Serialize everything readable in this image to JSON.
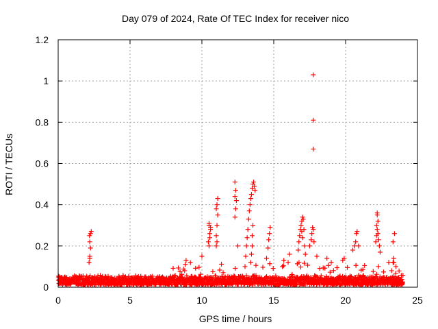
{
  "chart_data": {
    "type": "scatter",
    "title": "Day 079 of 2024, Rate Of TEC Index for receiver nico",
    "xlabel": "GPS time / hours",
    "ylabel": "ROTI / TECUs",
    "xlim": [
      0,
      25
    ],
    "ylim": [
      0,
      1.2
    ],
    "xticks": [
      0,
      5,
      10,
      15,
      20,
      25
    ],
    "xtick_labels": [
      "0",
      "5",
      "10",
      "15",
      "20",
      "25"
    ],
    "yticks": [
      0,
      0.2,
      0.4,
      0.6,
      0.8,
      1.0,
      1.2
    ],
    "ytick_labels": [
      "0",
      "0.2",
      "0.4",
      "0.6",
      "0.8",
      "1",
      "1.2"
    ],
    "grid": true,
    "marker": "plus",
    "series": [
      {
        "name": "ROTI",
        "color": "#ff0000",
        "baseline": {
          "x_range": [
            0,
            24
          ],
          "typical_max": 0.06,
          "description_range": [
            0.01,
            0.06
          ]
        },
        "x": [
          2.15,
          2.2,
          2.25,
          2.2,
          2.18,
          2.25,
          2.3,
          2.2,
          8.8,
          8.85,
          8.9,
          10.0,
          10.5,
          10.55,
          10.6,
          10.5,
          10.45,
          10.55,
          10.6,
          10.5,
          11.0,
          11.05,
          11.1,
          11.0,
          11.05,
          11.1,
          11.0,
          11.05,
          12.3,
          12.35,
          12.3,
          12.35,
          12.3,
          12.4,
          12.5,
          13.0,
          13.05,
          13.1,
          13.15,
          13.2,
          13.25,
          13.3,
          13.35,
          13.4,
          13.45,
          13.5,
          13.55,
          13.6,
          13.65,
          13.7,
          13.4,
          13.45,
          13.5,
          13.5,
          13.55,
          14.5,
          14.6,
          14.65,
          14.7,
          14.75,
          15.6,
          15.7,
          16.0,
          16.1,
          16.7,
          16.75,
          16.8,
          16.85,
          16.9,
          16.95,
          17.0,
          17.05,
          17.1,
          17.15,
          17.2,
          17.0,
          16.95,
          17.5,
          17.6,
          17.65,
          17.7,
          17.75,
          17.8,
          17.75,
          17.75,
          17.75,
          18.0,
          18.7,
          19.0,
          19.8,
          19.9,
          20.5,
          20.6,
          20.7,
          20.75,
          20.8,
          20.9,
          22.1,
          22.15,
          22.2,
          22.25,
          22.2,
          22.15,
          22.2,
          22.25,
          22.3,
          22.35,
          22.4,
          23.0,
          23.2,
          23.3,
          23.35,
          23.4,
          23.5,
          23.3
        ],
        "y": [
          0.12,
          0.15,
          0.19,
          0.22,
          0.25,
          0.26,
          0.27,
          0.14,
          0.08,
          0.11,
          0.13,
          0.15,
          0.2,
          0.26,
          0.28,
          0.3,
          0.22,
          0.24,
          0.29,
          0.31,
          0.25,
          0.3,
          0.35,
          0.38,
          0.4,
          0.43,
          0.2,
          0.22,
          0.34,
          0.38,
          0.44,
          0.47,
          0.51,
          0.42,
          0.2,
          0.1,
          0.15,
          0.2,
          0.24,
          0.28,
          0.33,
          0.37,
          0.4,
          0.43,
          0.45,
          0.48,
          0.5,
          0.51,
          0.49,
          0.47,
          0.12,
          0.16,
          0.2,
          0.25,
          0.3,
          0.14,
          0.19,
          0.23,
          0.26,
          0.29,
          0.1,
          0.13,
          0.12,
          0.16,
          0.18,
          0.22,
          0.25,
          0.28,
          0.3,
          0.32,
          0.34,
          0.33,
          0.28,
          0.2,
          0.16,
          0.24,
          0.27,
          0.2,
          0.23,
          0.26,
          0.29,
          0.28,
          0.22,
          0.67,
          0.81,
          1.03,
          0.15,
          0.14,
          0.12,
          0.13,
          0.14,
          0.18,
          0.2,
          0.22,
          0.26,
          0.27,
          0.2,
          0.22,
          0.25,
          0.28,
          0.32,
          0.36,
          0.3,
          0.35,
          0.26,
          0.23,
          0.2,
          0.17,
          0.12,
          0.08,
          0.22,
          0.14,
          0.26,
          0.1,
          0.12
        ]
      }
    ]
  }
}
